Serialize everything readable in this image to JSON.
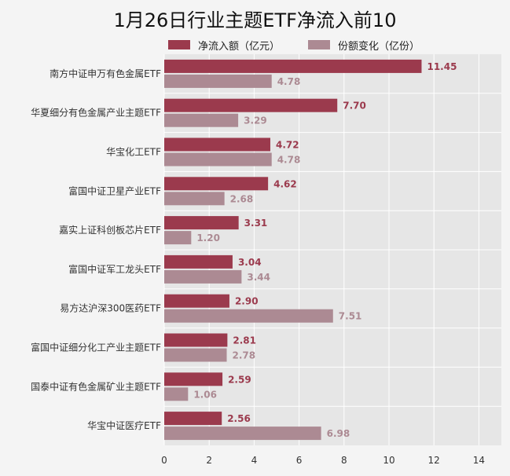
{
  "chart_data": {
    "type": "bar",
    "orientation": "horizontal",
    "title": "1月26日行业主题ETF净流入前10",
    "categories": [
      "南方中证申万有色金属ETF",
      "华夏细分有色金属产业主题ETF",
      "华宝化工ETF",
      "富国中证卫星产业ETF",
      "嘉实上证科创板芯片ETF",
      "富国中证军工龙头ETF",
      "易方达沪深300医药ETF",
      "富国中证细分化工产业主题ETF",
      "国泰中证有色金属矿业主题ETF",
      "华宝中证医疗ETF"
    ],
    "series": [
      {
        "name": "净流入额（亿元）",
        "color": "#9b3a4d",
        "values": [
          11.45,
          7.7,
          4.72,
          4.62,
          3.31,
          3.04,
          2.9,
          2.81,
          2.59,
          2.56
        ],
        "labels": [
          "11.45",
          "7.70",
          "4.72",
          "4.62",
          "3.31",
          "3.04",
          "2.90",
          "2.81",
          "2.59",
          "2.56"
        ]
      },
      {
        "name": "份额变化（亿份）",
        "color": "#ac8a93",
        "values": [
          4.78,
          3.29,
          4.78,
          2.68,
          1.2,
          3.44,
          7.51,
          2.78,
          1.06,
          6.98
        ],
        "labels": [
          "4.78",
          "3.29",
          "4.78",
          "2.68",
          "1.20",
          "3.44",
          "7.51",
          "2.78",
          "1.06",
          "6.98"
        ]
      }
    ],
    "xlim": [
      0,
      15
    ],
    "xticks": [
      "0",
      "2",
      "4",
      "6",
      "8",
      "10",
      "12",
      "14"
    ],
    "xtick_values": [
      0,
      2,
      4,
      6,
      8,
      10,
      12,
      14
    ],
    "grid": true,
    "legend_position": "top",
    "colors": {
      "plot_background": "#e6e6e6",
      "page_background": "#f4f4f4",
      "gridline": "#ffffff"
    }
  }
}
